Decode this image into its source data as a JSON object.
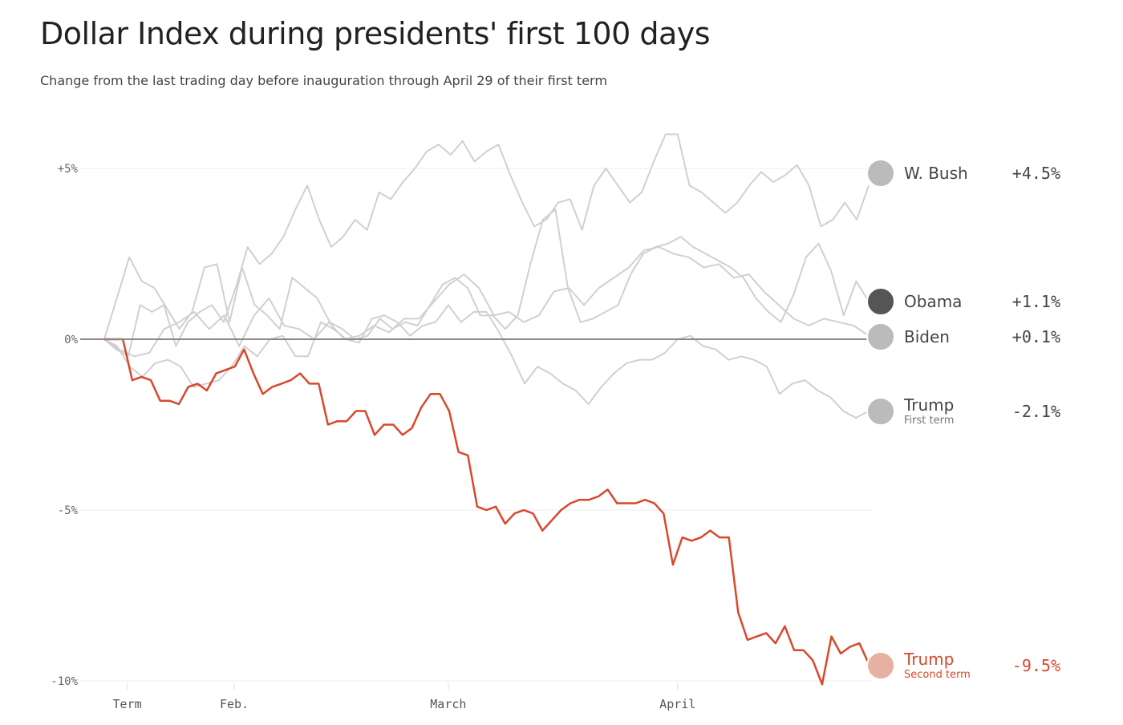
{
  "title": "Dollar Index during presidents' first 100 days",
  "subtitle": "Change from the last trading day before inauguration through April 29 of their first term",
  "chart_data": {
    "type": "line",
    "title": "Dollar Index during presidents' first 100 days",
    "subtitle": "Change from the last trading day before inauguration through April 29 of their first term",
    "ylim": [
      -10,
      6
    ],
    "y_ticks": [
      {
        "value": 5,
        "label": "+5%"
      },
      {
        "value": 0,
        "label": "0%"
      },
      {
        "value": -5,
        "label": "-5%"
      },
      {
        "value": -10,
        "label": "-10%"
      }
    ],
    "x_ticks": [
      {
        "label": "Term",
        "pos": 0.03
      },
      {
        "label": "Feb.",
        "pos": 0.17
      },
      {
        "label": "March",
        "pos": 0.45
      },
      {
        "label": "April",
        "pos": 0.75
      }
    ],
    "grid": true,
    "series": [
      {
        "name": "W. Bush",
        "sub": "",
        "end_label": "+4.5%",
        "color": "#d0d0d0",
        "highlight": false,
        "values": [
          0,
          -0.3,
          -0.5,
          1.0,
          0.8,
          1.0,
          -0.2,
          0.5,
          0.8,
          1.0,
          0.5,
          1.5,
          2.7,
          2.2,
          2.5,
          3.0,
          3.8,
          4.5,
          3.5,
          2.7,
          3.0,
          3.5,
          3.2,
          4.3,
          4.1,
          4.6,
          5.0,
          5.5,
          5.7,
          5.4,
          5.8,
          5.2,
          5.5,
          5.7,
          4.8,
          4.0,
          3.3,
          3.5,
          4.0,
          4.1,
          3.2,
          4.5,
          5.0,
          4.5,
          4.0,
          4.3,
          5.2,
          6.0,
          6.0,
          4.5,
          4.3,
          4.0,
          3.7,
          4.0,
          4.5,
          4.9,
          4.6,
          4.8,
          5.1,
          4.5,
          3.3,
          3.5,
          4.0,
          3.5,
          4.5
        ]
      },
      {
        "name": "Obama",
        "sub": "",
        "end_label": "+1.1%",
        "color": "#d0d0d0",
        "highlight": false,
        "values": [
          0,
          1.2,
          2.4,
          1.7,
          1.5,
          0.9,
          0.3,
          0.8,
          2.1,
          2.2,
          0.5,
          2.1,
          1.0,
          0.7,
          0.3,
          1.8,
          1.5,
          1.2,
          0.5,
          0.3,
          0,
          0.1,
          0.6,
          0.3,
          0.5,
          0.4,
          1.0,
          1.6,
          1.8,
          1.5,
          0.7,
          0.7,
          0.3,
          0.7,
          2.2,
          3.5,
          3.8,
          1.5,
          0.5,
          0.6,
          0.8,
          1.0,
          1.9,
          2.5,
          2.7,
          2.8,
          3.0,
          2.7,
          2.5,
          2.3,
          2.1,
          1.8,
          1.2,
          0.8,
          0.5,
          1.3,
          2.4,
          2.8,
          2.0,
          0.7,
          1.7,
          1.1
        ]
      },
      {
        "name": "Biden",
        "sub": "",
        "end_label": "+0.1%",
        "color": "#d0d0d0",
        "highlight": false,
        "values": [
          0,
          -0.3,
          -0.5,
          -0.4,
          0.3,
          0.5,
          0.8,
          0.3,
          0.7,
          -0.2,
          0.7,
          1.2,
          0.4,
          0.3,
          0,
          0.5,
          0,
          0.1,
          0.4,
          0.2,
          0.6,
          0.6,
          1.1,
          1.6,
          1.9,
          1.5,
          0.7,
          0.8,
          0.5,
          0.7,
          1.4,
          1.5,
          1.0,
          1.5,
          1.8,
          2.1,
          2.6,
          2.7,
          2.5,
          2.4,
          2.1,
          2.2,
          1.8,
          1.9,
          1.4,
          1.0,
          0.6,
          0.4,
          0.6,
          0.5,
          0.4,
          0.1
        ]
      },
      {
        "name": "Trump",
        "sub": "First term",
        "end_label": "-2.1%",
        "color": "#d0d0d0",
        "highlight": false,
        "values": [
          0,
          -0.2,
          -0.8,
          -1.1,
          -0.7,
          -0.6,
          -0.8,
          -1.4,
          -1.3,
          -1.2,
          -0.8,
          -0.2,
          -0.5,
          0,
          0.1,
          -0.5,
          -0.5,
          0.5,
          0.3,
          0,
          -0.1,
          0.6,
          0.7,
          0.5,
          0.1,
          0.4,
          0.5,
          1.0,
          0.5,
          0.8,
          0.8,
          0.2,
          -0.5,
          -1.3,
          -0.8,
          -1.0,
          -1.3,
          -1.5,
          -1.9,
          -1.4,
          -1.0,
          -0.7,
          -0.6,
          -0.6,
          -0.4,
          0.0,
          0.1,
          -0.2,
          -0.3,
          -0.6,
          -0.5,
          -0.6,
          -0.8,
          -1.6,
          -1.3,
          -1.2,
          -1.5,
          -1.7,
          -2.1,
          -2.3,
          -2.1
        ]
      },
      {
        "name": "Trump",
        "sub": "Second term",
        "end_label": "-9.5%",
        "color": "#d9482b",
        "highlight": true,
        "values": [
          0,
          0,
          0,
          -1.2,
          -1.1,
          -1.2,
          -1.8,
          -1.8,
          -1.9,
          -1.4,
          -1.3,
          -1.5,
          -1.0,
          -0.9,
          -0.8,
          -0.3,
          -1.0,
          -1.6,
          -1.4,
          -1.3,
          -1.2,
          -1.0,
          -1.3,
          -1.3,
          -2.5,
          -2.4,
          -2.4,
          -2.1,
          -2.1,
          -2.8,
          -2.5,
          -2.5,
          -2.8,
          -2.6,
          -2.0,
          -1.6,
          -1.6,
          -2.1,
          -3.3,
          -3.4,
          -4.9,
          -5.0,
          -4.9,
          -5.4,
          -5.1,
          -5.0,
          -5.1,
          -5.6,
          -5.3,
          -5.0,
          -4.8,
          -4.7,
          -4.7,
          -4.6,
          -4.4,
          -4.8,
          -4.8,
          -4.8,
          -4.7,
          -4.8,
          -5.1,
          -6.6,
          -5.8,
          -5.9,
          -5.8,
          -5.6,
          -5.8,
          -5.8,
          -8.0,
          -8.8,
          -8.7,
          -8.6,
          -8.9,
          -8.4,
          -9.1,
          -9.1,
          -9.4,
          -10.1,
          -8.7,
          -9.2,
          -9.0,
          -8.9,
          -9.5
        ]
      }
    ]
  }
}
